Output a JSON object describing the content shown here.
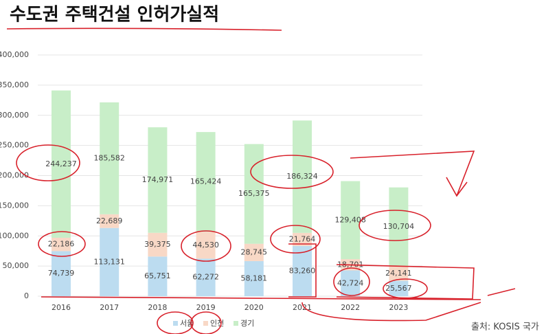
{
  "chart_data": {
    "type": "stacked-bar",
    "title": "수도권 주택건설 인허가실적",
    "source": "출처: KOSIS 국가",
    "categories": [
      "2016",
      "2017",
      "2018",
      "2019",
      "2020",
      "2021",
      "2022",
      "2023"
    ],
    "series": [
      {
        "name": "서울",
        "color": "#bcdcf0",
        "values": [
          74739,
          113131,
          65751,
          62272,
          58181,
          83260,
          42724,
          25567
        ],
        "value_labels": [
          "74,739",
          "113,131",
          "65,751",
          "62,272",
          "58,181",
          "83,260",
          "42,724",
          "25,567"
        ]
      },
      {
        "name": "인천",
        "color": "#f8d8c6",
        "values": [
          22186,
          22689,
          39375,
          44530,
          28745,
          21764,
          18701,
          24141
        ],
        "value_labels": [
          "22,186",
          "22,689",
          "39,375",
          "44,530",
          "28,745",
          "21,764",
          "18,701",
          "24,141"
        ]
      },
      {
        "name": "경기",
        "color": "#c8eec8",
        "values": [
          244237,
          185582,
          174971,
          165424,
          165375,
          186324,
          129408,
          130704
        ],
        "value_labels": [
          "244,237",
          "185,582",
          "174,971",
          "165,424",
          "165,375",
          "186,324",
          "129,408",
          "130,704"
        ]
      }
    ],
    "ylim": [
      0,
      400000
    ],
    "yticks": [
      0,
      {
        "value": 50000,
        "label": "50,000"
      },
      {
        "value": 100000,
        "label": "100,000"
      },
      {
        "value": 150000,
        "label": "150,000"
      },
      {
        "value": 200000,
        "label": "200,000"
      },
      {
        "value": 250000,
        "label": "250,000"
      },
      {
        "value": 300000,
        "label": "300,000"
      },
      {
        "value": 350000,
        "label": "350,000"
      },
      {
        "value": 400000,
        "label": "400,000"
      }
    ],
    "grid": true,
    "legend": "bottom"
  }
}
